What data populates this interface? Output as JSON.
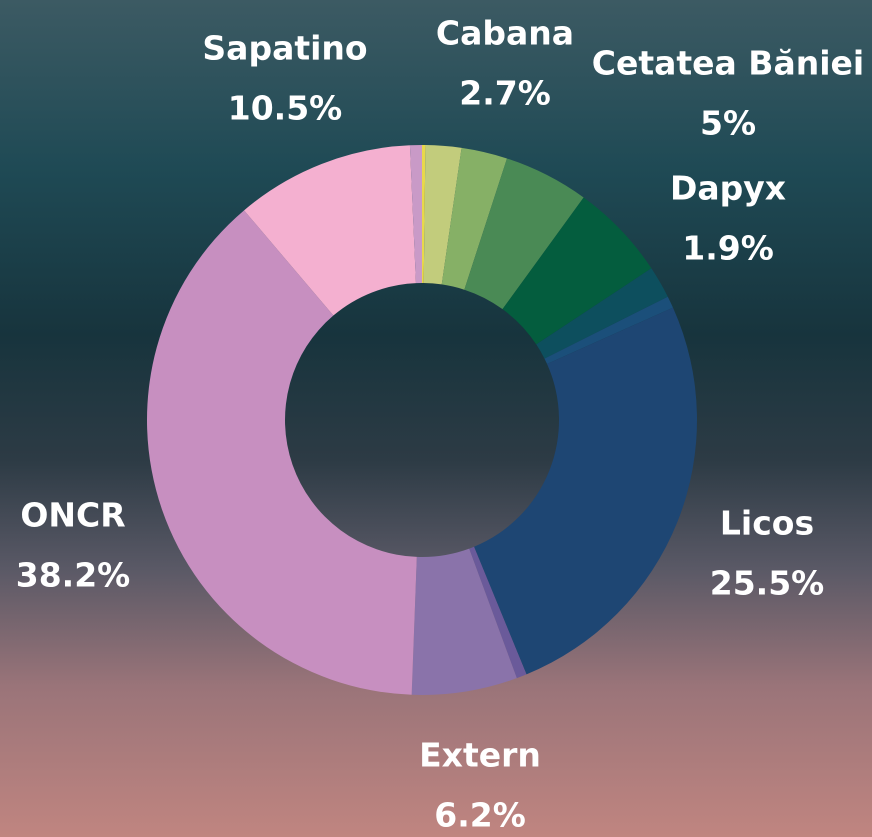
{
  "chart_data": {
    "type": "donut",
    "categories": [
      null,
      null,
      "Cabana",
      "Cetatea Băniei",
      null,
      "Dapyx",
      null,
      "Licos",
      null,
      "Extern",
      "ONCR",
      "Sapatino",
      null
    ],
    "values": [
      0.2,
      2.1,
      2.7,
      5,
      5.7,
      1.9,
      0.7,
      25.5,
      0.6,
      6.2,
      38.2,
      10.5,
      0.7
    ],
    "value_labels": [
      null,
      null,
      "2.7%",
      "5%",
      null,
      "1.9%",
      null,
      "25.5%",
      null,
      "6.2%",
      "38.2%",
      "10.5%",
      null
    ],
    "colors": [
      "#e8d84a",
      "#c2cc7c",
      "#86b066",
      "#4a8a55",
      "#045d3e",
      "#0d4f5e",
      "#1b4f7a",
      "#1e4673",
      "#6a5a9a",
      "#8a73aa",
      "#c78fc0",
      "#f4b0d0",
      "#c99ac7"
    ]
  }
}
